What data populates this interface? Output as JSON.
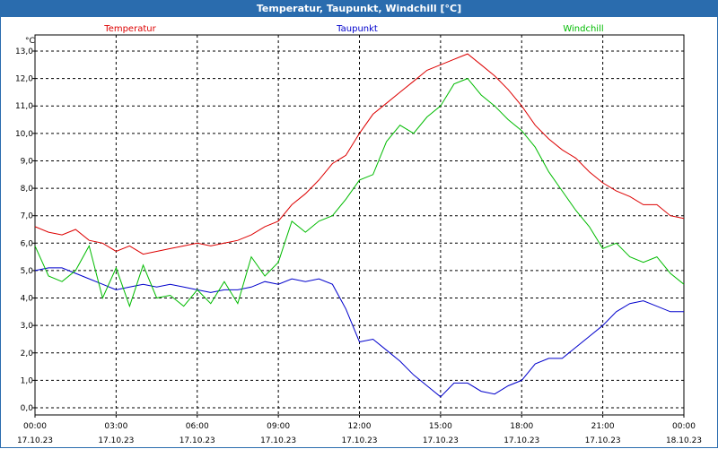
{
  "window": {
    "title": "Temperatur, Taupunkt, Windchill [°C]"
  },
  "chart_data": {
    "type": "line",
    "title": "Temperatur, Taupunkt, Windchill [°C]",
    "ylabel": "°C",
    "ylim": [
      0,
      13.0
    ],
    "yticks": [
      "0,0",
      "1,0",
      "2,0",
      "3,0",
      "4,0",
      "5,0",
      "6,0",
      "7,0",
      "8,0",
      "9,0",
      "10,0",
      "11,0",
      "12,0",
      "13,0"
    ],
    "xlim": [
      0,
      24
    ],
    "xticks": [
      {
        "time": "00:00",
        "date": "17.10.23"
      },
      {
        "time": "03:00",
        "date": "17.10.23"
      },
      {
        "time": "06:00",
        "date": "17.10.23"
      },
      {
        "time": "09:00",
        "date": "17.10.23"
      },
      {
        "time": "12:00",
        "date": "17.10.23"
      },
      {
        "time": "15:00",
        "date": "17.10.23"
      },
      {
        "time": "18:00",
        "date": "17.10.23"
      },
      {
        "time": "21:00",
        "date": "17.10.23"
      },
      {
        "time": "00:00",
        "date": "18.10.23"
      }
    ],
    "grid": true,
    "legend_position": "top",
    "series": [
      {
        "name": "Temperatur",
        "color": "#dd0000",
        "points": [
          [
            0,
            6.6
          ],
          [
            0.5,
            6.4
          ],
          [
            1,
            6.3
          ],
          [
            1.5,
            6.5
          ],
          [
            2,
            6.1
          ],
          [
            2.5,
            6.0
          ],
          [
            3,
            5.7
          ],
          [
            3.5,
            5.9
          ],
          [
            4,
            5.6
          ],
          [
            4.5,
            5.7
          ],
          [
            5,
            5.8
          ],
          [
            5.5,
            5.9
          ],
          [
            6,
            6.0
          ],
          [
            6.5,
            5.9
          ],
          [
            7,
            6.0
          ],
          [
            7.5,
            6.1
          ],
          [
            8,
            6.3
          ],
          [
            8.5,
            6.6
          ],
          [
            9,
            6.8
          ],
          [
            9.5,
            7.4
          ],
          [
            10,
            7.8
          ],
          [
            10.5,
            8.3
          ],
          [
            11,
            8.9
          ],
          [
            11.5,
            9.2
          ],
          [
            12,
            10.0
          ],
          [
            12.5,
            10.7
          ],
          [
            13,
            11.1
          ],
          [
            13.5,
            11.5
          ],
          [
            14,
            11.9
          ],
          [
            14.5,
            12.3
          ],
          [
            15,
            12.5
          ],
          [
            15.5,
            12.7
          ],
          [
            16,
            12.9
          ],
          [
            16.5,
            12.5
          ],
          [
            17,
            12.1
          ],
          [
            17.5,
            11.6
          ],
          [
            18,
            11.0
          ],
          [
            18.5,
            10.3
          ],
          [
            19,
            9.8
          ],
          [
            19.5,
            9.4
          ],
          [
            20,
            9.1
          ],
          [
            20.5,
            8.6
          ],
          [
            21,
            8.2
          ],
          [
            21.5,
            7.9
          ],
          [
            22,
            7.7
          ],
          [
            22.5,
            7.4
          ],
          [
            23,
            7.4
          ],
          [
            23.5,
            7.0
          ],
          [
            24,
            6.9
          ]
        ]
      },
      {
        "name": "Taupunkt",
        "color": "#0000cc",
        "points": [
          [
            0,
            5.0
          ],
          [
            0.5,
            5.1
          ],
          [
            1,
            5.1
          ],
          [
            1.5,
            4.9
          ],
          [
            2,
            4.7
          ],
          [
            2.5,
            4.5
          ],
          [
            3,
            4.3
          ],
          [
            3.5,
            4.4
          ],
          [
            4,
            4.5
          ],
          [
            4.5,
            4.4
          ],
          [
            5,
            4.5
          ],
          [
            5.5,
            4.4
          ],
          [
            6,
            4.3
          ],
          [
            6.5,
            4.2
          ],
          [
            7,
            4.3
          ],
          [
            7.5,
            4.3
          ],
          [
            8,
            4.4
          ],
          [
            8.5,
            4.6
          ],
          [
            9,
            4.5
          ],
          [
            9.5,
            4.7
          ],
          [
            10,
            4.6
          ],
          [
            10.5,
            4.7
          ],
          [
            11,
            4.5
          ],
          [
            11.5,
            3.6
          ],
          [
            12,
            2.4
          ],
          [
            12.5,
            2.5
          ],
          [
            13,
            2.1
          ],
          [
            13.5,
            1.7
          ],
          [
            14,
            1.2
          ],
          [
            14.5,
            0.8
          ],
          [
            15,
            0.4
          ],
          [
            15.5,
            0.9
          ],
          [
            16,
            0.9
          ],
          [
            16.5,
            0.6
          ],
          [
            17,
            0.5
          ],
          [
            17.5,
            0.8
          ],
          [
            18,
            1.0
          ],
          [
            18.5,
            1.6
          ],
          [
            19,
            1.8
          ],
          [
            19.5,
            1.8
          ],
          [
            20,
            2.2
          ],
          [
            20.5,
            2.6
          ],
          [
            21,
            3.0
          ],
          [
            21.5,
            3.5
          ],
          [
            22,
            3.8
          ],
          [
            22.5,
            3.9
          ],
          [
            23,
            3.7
          ],
          [
            23.5,
            3.5
          ],
          [
            24,
            3.5
          ]
        ]
      },
      {
        "name": "Windchill",
        "color": "#00bb00",
        "points": [
          [
            0,
            5.9
          ],
          [
            0.5,
            4.8
          ],
          [
            1,
            4.6
          ],
          [
            1.5,
            5.0
          ],
          [
            2,
            5.9
          ],
          [
            2.5,
            4.0
          ],
          [
            3,
            5.1
          ],
          [
            3.5,
            3.7
          ],
          [
            4,
            5.2
          ],
          [
            4.5,
            4.0
          ],
          [
            5,
            4.1
          ],
          [
            5.5,
            3.7
          ],
          [
            6,
            4.3
          ],
          [
            6.5,
            3.8
          ],
          [
            7,
            4.6
          ],
          [
            7.5,
            3.8
          ],
          [
            8,
            5.5
          ],
          [
            8.5,
            4.8
          ],
          [
            9,
            5.3
          ],
          [
            9.5,
            6.8
          ],
          [
            10,
            6.4
          ],
          [
            10.5,
            6.8
          ],
          [
            11,
            7.0
          ],
          [
            11.5,
            7.6
          ],
          [
            12,
            8.3
          ],
          [
            12.5,
            8.5
          ],
          [
            13,
            9.7
          ],
          [
            13.5,
            10.3
          ],
          [
            14,
            10.0
          ],
          [
            14.5,
            10.6
          ],
          [
            15,
            11.0
          ],
          [
            15.5,
            11.8
          ],
          [
            16,
            12.0
          ],
          [
            16.5,
            11.4
          ],
          [
            17,
            11.0
          ],
          [
            17.5,
            10.5
          ],
          [
            18,
            10.1
          ],
          [
            18.5,
            9.5
          ],
          [
            19,
            8.6
          ],
          [
            19.5,
            7.9
          ],
          [
            20,
            7.2
          ],
          [
            20.5,
            6.6
          ],
          [
            21,
            5.8
          ],
          [
            21.5,
            6.0
          ],
          [
            22,
            5.5
          ],
          [
            22.5,
            5.3
          ],
          [
            23,
            5.5
          ],
          [
            23.5,
            4.9
          ],
          [
            24,
            4.5
          ]
        ]
      }
    ]
  }
}
